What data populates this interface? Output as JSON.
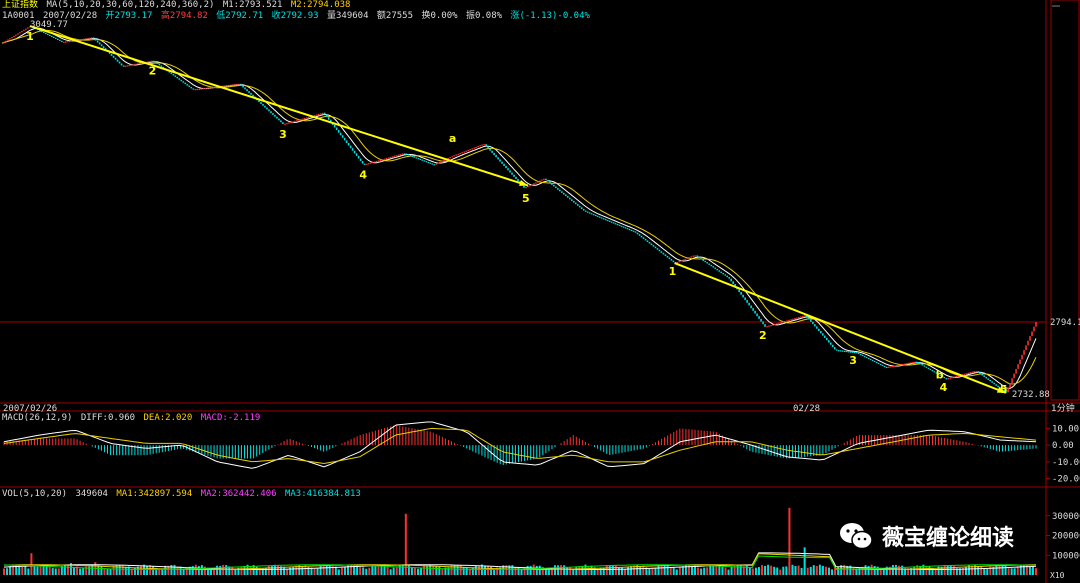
{
  "header": {
    "index_name": "上证指数",
    "ma_params": "MA(5,10,20,30,60,120,240,360,2)",
    "m1": "M1:2793.521",
    "m2": "M2:2794.038",
    "code": "1A0001",
    "date": "2007/02/28",
    "open": "开2793.17",
    "high": "高2794.82",
    "low": "低2792.71",
    "close": "收2792.93",
    "volume": "量349604",
    "amount": "额27555",
    "turnover": "换0.00%",
    "amplitude": "振0.08%",
    "change": "涨(-1.13)-0.04%"
  },
  "price_labels": {
    "high_mark": "3049.77",
    "low_mark": "2732.88",
    "current": "2794.1"
  },
  "bottom_axis": {
    "left_date": "2007/02/26",
    "mid_date": "02/28",
    "period": "1分钟",
    "corner_unit": "X10"
  },
  "macd": {
    "params": "MACD(26,12,9)",
    "diff": "DIFF:0.960",
    "dea": "DEA:2.020",
    "macd": "MACD:-2.119",
    "ticks": [
      "10.00",
      "0.00",
      "-10.00",
      "-20.00"
    ],
    "tick_values": [
      10,
      0,
      -10,
      -20
    ]
  },
  "vol": {
    "params": "VOL(5,10,20)",
    "value": "349604",
    "ma1": "MA1:342897.594",
    "ma2": "MA2:362442.406",
    "ma3": "MA3:416384.813",
    "ticks": [
      "300000",
      "200000",
      "100000"
    ],
    "tick_values": [
      300000,
      200000,
      100000
    ]
  },
  "watermark": {
    "text": "薇宝缠论细读",
    "icon": "wechat-icon"
  },
  "colors": {
    "up": "#ff3030",
    "down": "#00e0e0",
    "annotation": "#ffff00",
    "ma_fast": "#ffffff",
    "ma_slow": "#e8d000"
  },
  "annotations": {
    "segment_a": [
      "1",
      "2",
      "3",
      "4",
      "5"
    ],
    "segment_b": [
      "1",
      "2",
      "3",
      "4",
      "5"
    ],
    "arrow_labels": [
      "a",
      "b"
    ]
  },
  "chart_data": {
    "type": "line",
    "price_polyline_time_index": [
      0,
      14,
      30,
      45,
      60,
      75,
      95,
      118,
      140,
      160,
      180,
      200,
      215,
      225,
      240,
      260,
      270,
      290,
      315,
      335,
      345,
      362,
      380,
      400,
      415,
      425,
      440,
      455,
      470,
      485,
      500,
      515
    ],
    "price_polyline_values": [
      3035,
      3049.77,
      3036,
      3040,
      3015,
      3020,
      2995,
      3000,
      2965,
      2975,
      2930,
      2940,
      2930,
      2938,
      2948,
      2910,
      2918,
      2890,
      2872,
      2845,
      2852,
      2832,
      2790,
      2800,
      2770,
      2768,
      2755,
      2760,
      2745,
      2752,
      2732.88,
      2794.1
    ],
    "ylim": [
      2725,
      3055
    ],
    "macd_diff": [
      2,
      6,
      9,
      1,
      -2,
      0,
      -10,
      -14,
      -6,
      -13,
      -4,
      12,
      14,
      8,
      -10,
      -12,
      -3,
      -13,
      -11,
      2,
      6,
      0,
      -7,
      -9,
      1,
      5,
      9,
      8,
      3,
      2
    ],
    "macd_dea": [
      1,
      4,
      7,
      4,
      1,
      1,
      -6,
      -10,
      -8,
      -11,
      -7,
      6,
      10,
      9,
      -4,
      -8,
      -6,
      -10,
      -10,
      -3,
      2,
      2,
      -3,
      -6,
      -2,
      2,
      6,
      7,
      5,
      3
    ],
    "macd_ylim": [
      -25,
      15
    ],
    "volume_spike_values": [
      110000,
      60000,
      65000,
      310000,
      340000,
      140000
    ],
    "vol_ylim": [
      0,
      400000
    ]
  }
}
